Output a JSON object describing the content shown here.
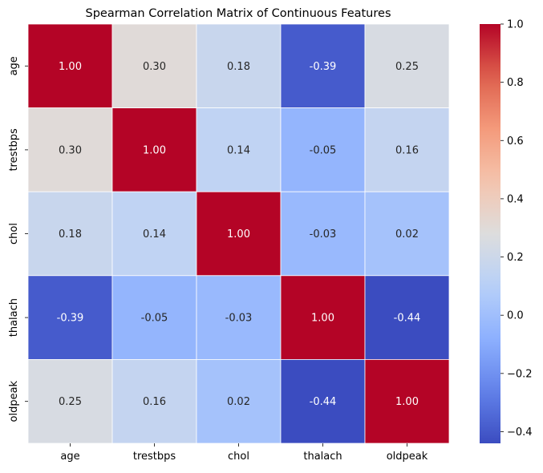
{
  "chart_data": {
    "type": "heatmap",
    "title": "Spearman Correlation Matrix of Continuous Features",
    "xlabel": "",
    "ylabel": "",
    "x_categories": [
      "age",
      "trestbps",
      "chol",
      "thalach",
      "oldpeak"
    ],
    "y_categories": [
      "age",
      "trestbps",
      "chol",
      "thalach",
      "oldpeak"
    ],
    "values": [
      [
        1.0,
        0.3,
        0.18,
        -0.39,
        0.25
      ],
      [
        0.3,
        1.0,
        0.14,
        -0.05,
        0.16
      ],
      [
        0.18,
        0.14,
        1.0,
        -0.03,
        0.02
      ],
      [
        -0.39,
        -0.05,
        -0.03,
        1.0,
        -0.44
      ],
      [
        0.25,
        0.16,
        0.02,
        -0.44,
        1.0
      ]
    ],
    "value_format": "0.00",
    "colormap": "coolwarm",
    "vmin": -0.44,
    "vmax": 1.0,
    "colorbar": {
      "ticks": [
        1.0,
        0.8,
        0.6,
        0.4,
        0.2,
        0.0,
        -0.2,
        -0.4
      ],
      "tick_labels": [
        "1.0",
        "0.8",
        "0.6",
        "0.4",
        "0.2",
        "0.0",
        "−0.2",
        "−0.4"
      ]
    },
    "cell_border_color": "#ffffff",
    "grid": false,
    "legend": "colorbar-right"
  }
}
